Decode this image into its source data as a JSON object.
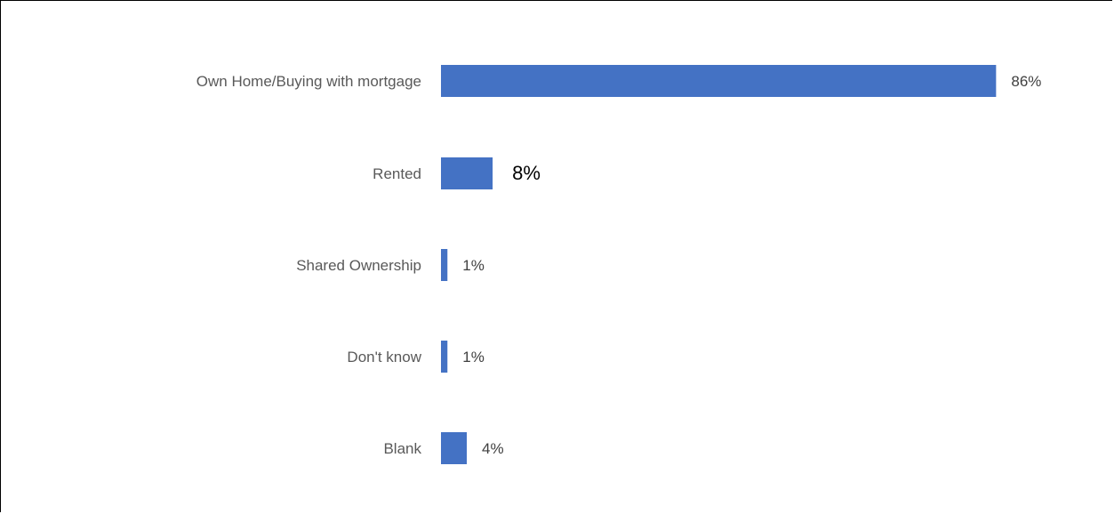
{
  "chart_data": {
    "type": "bar",
    "orientation": "horizontal",
    "title": "",
    "xlabel": "",
    "ylabel": "",
    "categories": [
      "Own Home/Buying with mortgage",
      "Rented",
      "Shared Ownership",
      "Don't know",
      "Blank"
    ],
    "values": [
      86,
      8,
      1,
      1,
      4
    ],
    "value_labels": [
      "86%",
      "8%",
      "1%",
      "1%",
      "4%"
    ],
    "xlim": [
      0,
      100
    ],
    "grid": false,
    "legend": "none",
    "bar_color": "#4472C4"
  }
}
